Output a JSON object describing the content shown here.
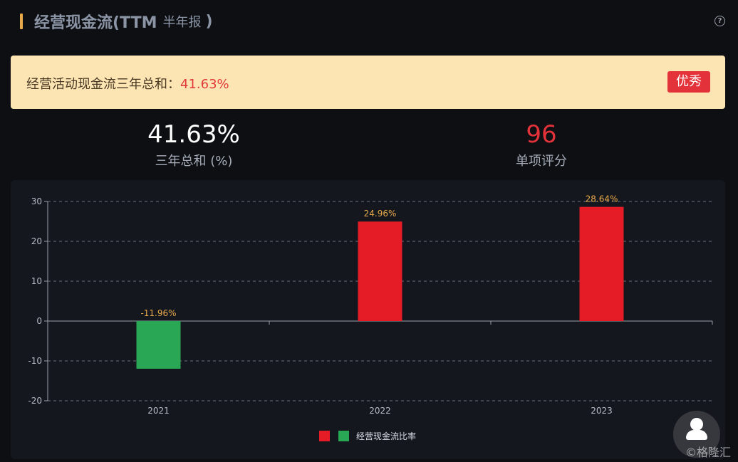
{
  "header": {
    "title": "经营现金流(TTM",
    "subtitle": "半年报",
    "close_paren": ")",
    "help_icon": "question-circle-icon"
  },
  "summary": {
    "label": "经营活动现金流三年总和：",
    "value": "41.63%",
    "rating": "优秀"
  },
  "stats": {
    "total_value": "41.63%",
    "total_label": "三年总和 (%)",
    "score_value": "96",
    "score_label": "单项评分"
  },
  "colors": {
    "positive": "#e51c26",
    "negative": "#2aa754",
    "label": "#e8a94b",
    "accent": "#e8a94b"
  },
  "chart_data": {
    "type": "bar",
    "categories": [
      "2021",
      "2022",
      "2023"
    ],
    "values": [
      -11.96,
      24.96,
      28.64
    ],
    "data_labels": [
      "-11.96%",
      "24.96%",
      "28.64%"
    ],
    "ylim": [
      -20,
      30
    ],
    "yticks": [
      30,
      20,
      10,
      0,
      -10,
      -20
    ],
    "grid": true,
    "legend_position": "bottom-center",
    "series": [
      {
        "name": "经营现金流比率",
        "values": [
          -11.96,
          24.96,
          28.64
        ]
      }
    ]
  },
  "watermark": "格隆汇",
  "watermark_prefix": "©"
}
